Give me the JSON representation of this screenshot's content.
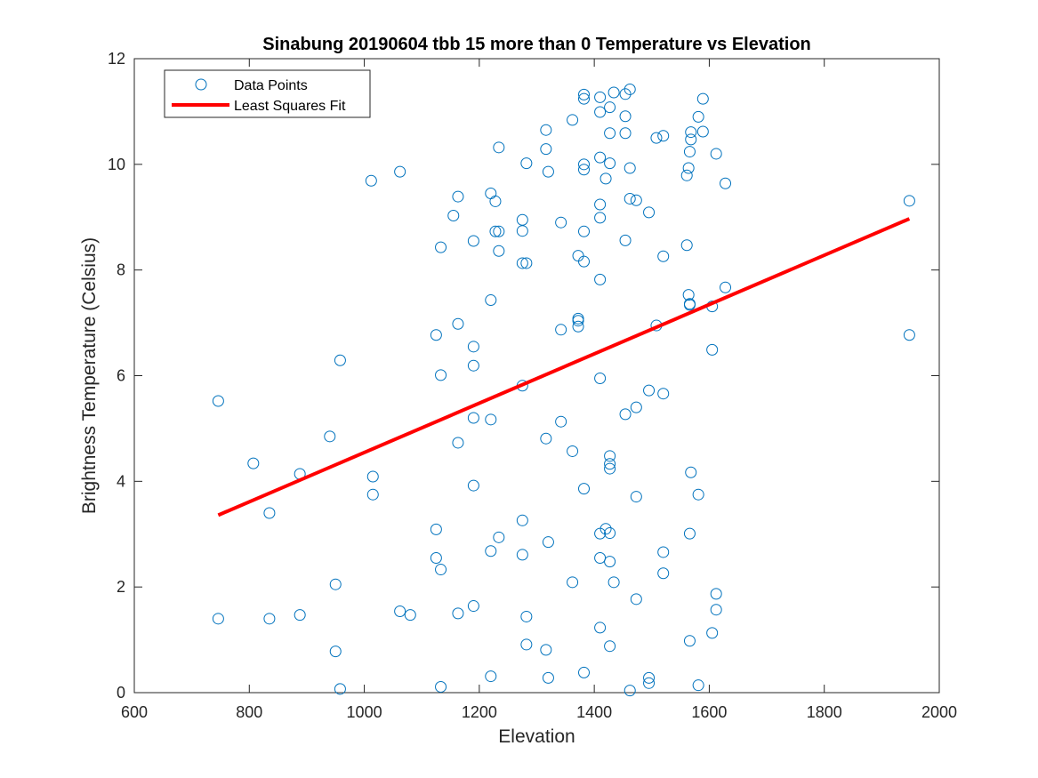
{
  "chart_data": {
    "type": "scatter",
    "title": "Sinabung 20190604 tbb 15 more than 0 Temperature vs Elevation",
    "xlabel": "Elevation",
    "ylabel": "Brightness Temperature (Celsius)",
    "xlim": [
      600,
      2000
    ],
    "ylim": [
      0,
      12
    ],
    "xticks": [
      600,
      800,
      1000,
      1200,
      1400,
      1600,
      1800,
      2000
    ],
    "yticks": [
      0,
      2,
      4,
      6,
      8,
      10,
      12
    ],
    "xtick_labels": [
      "600",
      "800",
      "1000",
      "1200",
      "1400",
      "1600",
      "1800",
      "2000"
    ],
    "ytick_labels": [
      "0",
      "2",
      "4",
      "6",
      "8",
      "10",
      "12"
    ],
    "grid": false,
    "legend_position": "top-left",
    "series": [
      {
        "name": "Data Points",
        "marker": "open-circle",
        "color": "#0072BD",
        "points": [
          [
            746,
            5.52
          ],
          [
            746,
            1.4
          ],
          [
            807,
            4.34
          ],
          [
            835,
            3.4
          ],
          [
            835,
            1.4
          ],
          [
            888,
            4.14
          ],
          [
            888,
            1.47
          ],
          [
            940,
            4.85
          ],
          [
            950,
            2.05
          ],
          [
            950,
            0.78
          ],
          [
            958,
            6.29
          ],
          [
            958,
            0.07
          ],
          [
            1012,
            9.69
          ],
          [
            1015,
            4.09
          ],
          [
            1015,
            3.75
          ],
          [
            1062,
            9.86
          ],
          [
            1062,
            1.54
          ],
          [
            1080,
            1.47
          ],
          [
            1125,
            6.77
          ],
          [
            1125,
            3.09
          ],
          [
            1125,
            2.55
          ],
          [
            1133,
            8.43
          ],
          [
            1133,
            6.01
          ],
          [
            1133,
            2.33
          ],
          [
            1133,
            0.11
          ],
          [
            1155,
            9.03
          ],
          [
            1163,
            9.39
          ],
          [
            1163,
            6.98
          ],
          [
            1163,
            4.73
          ],
          [
            1163,
            1.5
          ],
          [
            1190,
            8.55
          ],
          [
            1190,
            6.55
          ],
          [
            1190,
            6.19
          ],
          [
            1190,
            5.2
          ],
          [
            1190,
            3.92
          ],
          [
            1190,
            1.64
          ],
          [
            1220,
            9.45
          ],
          [
            1220,
            7.43
          ],
          [
            1220,
            5.17
          ],
          [
            1220,
            2.68
          ],
          [
            1220,
            0.31
          ],
          [
            1228,
            9.3
          ],
          [
            1228,
            8.73
          ],
          [
            1234,
            10.32
          ],
          [
            1234,
            8.73
          ],
          [
            1234,
            8.36
          ],
          [
            1234,
            2.94
          ],
          [
            1275,
            8.95
          ],
          [
            1275,
            8.74
          ],
          [
            1275,
            8.13
          ],
          [
            1275,
            5.81
          ],
          [
            1275,
            3.26
          ],
          [
            1275,
            2.61
          ],
          [
            1282,
            10.02
          ],
          [
            1282,
            8.13
          ],
          [
            1282,
            1.44
          ],
          [
            1282,
            0.91
          ],
          [
            1316,
            10.65
          ],
          [
            1316,
            10.29
          ],
          [
            1316,
            4.81
          ],
          [
            1316,
            0.81
          ],
          [
            1320,
            9.86
          ],
          [
            1320,
            2.85
          ],
          [
            1320,
            0.28
          ],
          [
            1342,
            8.9
          ],
          [
            1342,
            6.87
          ],
          [
            1342,
            5.13
          ],
          [
            1362,
            10.84
          ],
          [
            1362,
            4.57
          ],
          [
            1362,
            2.09
          ],
          [
            1372,
            8.27
          ],
          [
            1372,
            7.08
          ],
          [
            1372,
            7.04
          ],
          [
            1372,
            6.93
          ],
          [
            1382,
            11.32
          ],
          [
            1382,
            11.24
          ],
          [
            1382,
            10.0
          ],
          [
            1382,
            9.9
          ],
          [
            1382,
            8.73
          ],
          [
            1382,
            8.16
          ],
          [
            1382,
            3.86
          ],
          [
            1382,
            0.38
          ],
          [
            1410,
            11.27
          ],
          [
            1410,
            10.99
          ],
          [
            1410,
            10.13
          ],
          [
            1410,
            9.24
          ],
          [
            1410,
            8.99
          ],
          [
            1410,
            7.82
          ],
          [
            1410,
            5.95
          ],
          [
            1410,
            3.01
          ],
          [
            1410,
            2.55
          ],
          [
            1410,
            1.23
          ],
          [
            1420,
            3.1
          ],
          [
            1420,
            9.73
          ],
          [
            1427,
            11.08
          ],
          [
            1427,
            10.59
          ],
          [
            1427,
            10.02
          ],
          [
            1427,
            4.48
          ],
          [
            1427,
            4.33
          ],
          [
            1427,
            4.24
          ],
          [
            1427,
            3.02
          ],
          [
            1427,
            2.48
          ],
          [
            1427,
            0.88
          ],
          [
            1434,
            11.36
          ],
          [
            1434,
            2.09
          ],
          [
            1454,
            11.33
          ],
          [
            1454,
            10.91
          ],
          [
            1454,
            10.59
          ],
          [
            1454,
            8.56
          ],
          [
            1454,
            5.27
          ],
          [
            1462,
            11.42
          ],
          [
            1462,
            9.93
          ],
          [
            1462,
            9.35
          ],
          [
            1462,
            0.04
          ],
          [
            1473,
            9.32
          ],
          [
            1473,
            5.4
          ],
          [
            1473,
            3.71
          ],
          [
            1473,
            1.77
          ],
          [
            1495,
            9.09
          ],
          [
            1495,
            5.72
          ],
          [
            1495,
            0.28
          ],
          [
            1495,
            0.18
          ],
          [
            1508,
            10.5
          ],
          [
            1508,
            6.95
          ],
          [
            1520,
            10.54
          ],
          [
            1520,
            8.26
          ],
          [
            1520,
            5.66
          ],
          [
            1520,
            2.66
          ],
          [
            1520,
            2.26
          ],
          [
            1561,
            9.79
          ],
          [
            1561,
            8.47
          ],
          [
            1564,
            9.93
          ],
          [
            1564,
            7.53
          ],
          [
            1566,
            10.24
          ],
          [
            1566,
            7.36
          ],
          [
            1566,
            7.34
          ],
          [
            1566,
            3.01
          ],
          [
            1566,
            0.98
          ],
          [
            1568,
            10.61
          ],
          [
            1568,
            10.47
          ],
          [
            1568,
            4.17
          ],
          [
            1581,
            10.9
          ],
          [
            1581,
            3.75
          ],
          [
            1581,
            0.14
          ],
          [
            1589,
            11.24
          ],
          [
            1589,
            10.62
          ],
          [
            1605,
            7.31
          ],
          [
            1605,
            6.49
          ],
          [
            1605,
            1.13
          ],
          [
            1612,
            10.2
          ],
          [
            1612,
            1.87
          ],
          [
            1612,
            1.57
          ],
          [
            1628,
            9.64
          ],
          [
            1628,
            7.67
          ],
          [
            1948,
            9.31
          ],
          [
            1948,
            6.77
          ]
        ]
      },
      {
        "name": "Least Squares Fit",
        "marker": "line",
        "color": "#FF0000",
        "points": [
          [
            746,
            3.36
          ],
          [
            1948,
            8.97
          ]
        ]
      }
    ]
  }
}
